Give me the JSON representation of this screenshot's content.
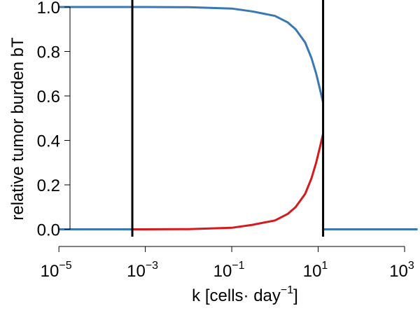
{
  "chart_data": {
    "type": "line",
    "xscale": "log",
    "xlim": [
      3.16e-05,
      1000
    ],
    "ylim": [
      -0.03,
      1.0
    ],
    "xlabel": {
      "main": "k [cells",
      "dot": "·",
      "unit": " day",
      "sup": "−1",
      "close": "]"
    },
    "ylabel": "relative tumor burden bT",
    "x_ticks": [
      {
        "value": 1e-05,
        "base": "10",
        "exp": "−5"
      },
      {
        "value": 0.001,
        "base": "10",
        "exp": "−3"
      },
      {
        "value": 0.1,
        "base": "10",
        "exp": "−1"
      },
      {
        "value": 10,
        "base": "10",
        "exp": "1"
      },
      {
        "value": 1000,
        "base": "10",
        "exp": "3"
      }
    ],
    "y_ticks": [
      {
        "value": 0.0,
        "label": "0.0"
      },
      {
        "value": 0.2,
        "label": "0.2"
      },
      {
        "value": 0.4,
        "label": "0.4"
      },
      {
        "value": 0.6,
        "label": "0.6"
      },
      {
        "value": 0.8,
        "label": "0.8"
      },
      {
        "value": 1.0,
        "label": "1.0"
      }
    ],
    "vlines": [
      {
        "x": 0.0005,
        "color": "#000000"
      },
      {
        "x": 13,
        "color": "#000000"
      }
    ],
    "series": [
      {
        "color": "#3a78b5",
        "x": [
          1e-05,
          0.0001,
          0.001,
          0.01,
          0.1,
          0.3,
          1,
          2,
          3,
          5,
          7,
          9,
          11,
          13
        ],
        "y": [
          1.0,
          1.0,
          1.0,
          0.999,
          0.993,
          0.98,
          0.96,
          0.93,
          0.9,
          0.84,
          0.77,
          0.7,
          0.63,
          0.57
        ]
      },
      {
        "color": "#3a78b5",
        "x": [
          13,
          20,
          50,
          100,
          1000,
          2000
        ],
        "y": [
          0.0,
          0.0,
          0.0,
          0.0,
          0.0,
          0.0
        ]
      },
      {
        "color": "#3a78b5",
        "x": [
          1e-05,
          0.0001,
          0.0005
        ],
        "y": [
          0.0,
          0.0,
          0.0
        ]
      },
      {
        "color": "#d7191c",
        "x": [
          0.0005,
          0.001,
          0.01,
          0.1,
          0.3,
          1,
          2,
          3,
          5,
          7,
          9,
          11,
          13
        ],
        "y": [
          0.0,
          0.0,
          0.001,
          0.007,
          0.02,
          0.04,
          0.07,
          0.1,
          0.16,
          0.23,
          0.3,
          0.37,
          0.43
        ]
      }
    ]
  }
}
